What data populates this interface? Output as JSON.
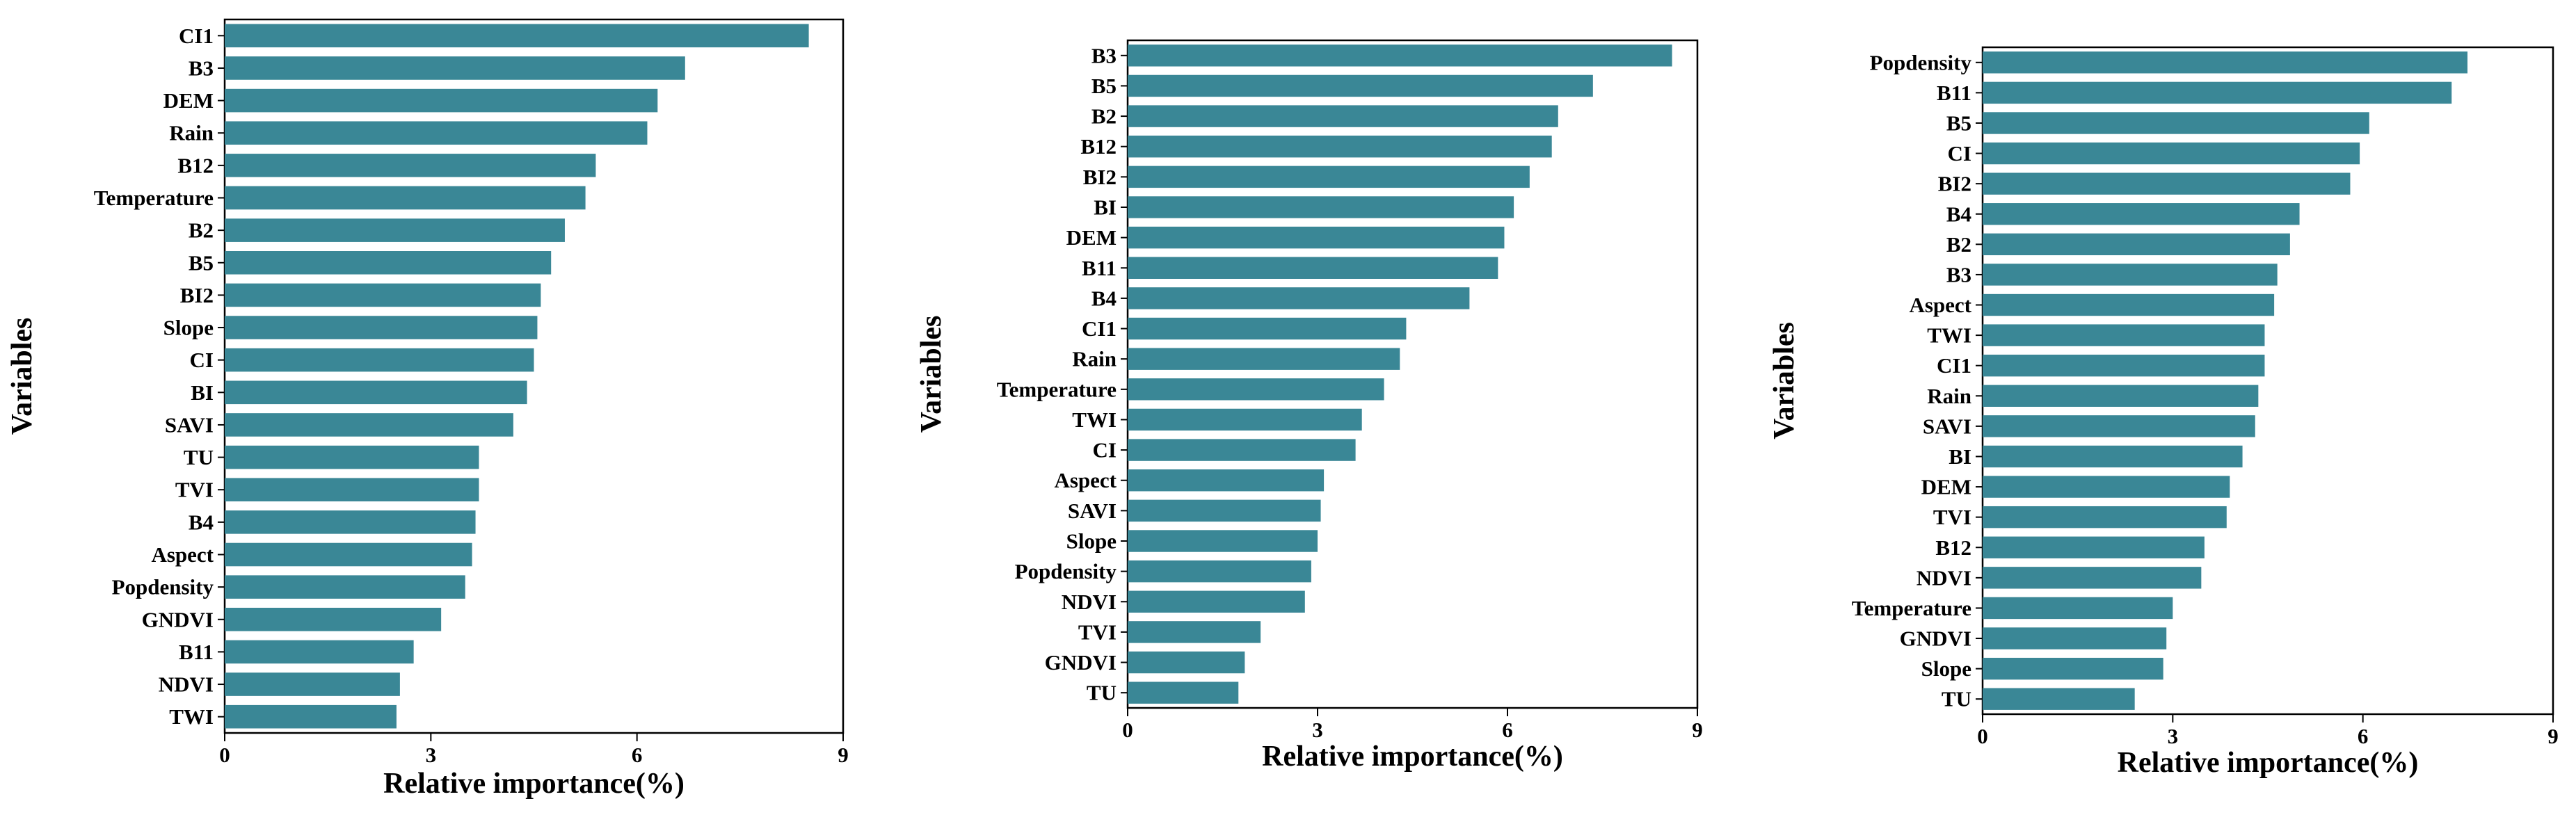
{
  "colors": {
    "bar": "#3a8796",
    "axis": "#000000"
  },
  "chart_data": [
    {
      "type": "bar",
      "orientation": "horizontal",
      "title": "",
      "xlabel": "Relative importance(%)",
      "ylabel": "Variables",
      "xlim": [
        0,
        9
      ],
      "xticks": [
        "0",
        "3",
        "6",
        "9"
      ],
      "categories": [
        "CI1",
        "B3",
        "DEM",
        "Rain",
        "B12",
        "Temperature",
        "B2",
        "B5",
        "BI2",
        "Slope",
        "CI",
        "BI",
        "SAVI",
        "TU",
        "TVI",
        "B4",
        "Aspect",
        "Popdensity",
        "GNDVI",
        "B11",
        "NDVI",
        "TWI"
      ],
      "values": [
        8.5,
        6.7,
        6.3,
        6.15,
        5.4,
        5.25,
        4.95,
        4.75,
        4.6,
        4.55,
        4.5,
        4.4,
        4.2,
        3.7,
        3.7,
        3.65,
        3.6,
        3.5,
        3.15,
        2.75,
        2.55,
        2.5
      ]
    },
    {
      "type": "bar",
      "orientation": "horizontal",
      "title": "",
      "xlabel": "Relative importance(%)",
      "ylabel": "Variables",
      "xlim": [
        0,
        9
      ],
      "xticks": [
        "0",
        "3",
        "6",
        "9"
      ],
      "categories": [
        "B3",
        "B5",
        "B2",
        "B12",
        "BI2",
        "BI",
        "DEM",
        "B11",
        "B4",
        "CI1",
        "Rain",
        "Temperature",
        "TWI",
        "CI",
        "Aspect",
        "SAVI",
        "Slope",
        "Popdensity",
        "NDVI",
        "TVI",
        "GNDVI",
        "TU"
      ],
      "values": [
        8.6,
        7.35,
        6.8,
        6.7,
        6.35,
        6.1,
        5.95,
        5.85,
        5.4,
        4.4,
        4.3,
        4.05,
        3.7,
        3.6,
        3.1,
        3.05,
        3.0,
        2.9,
        2.8,
        2.1,
        1.85,
        1.75
      ]
    },
    {
      "type": "bar",
      "orientation": "horizontal",
      "title": "",
      "xlabel": "Relative importance(%)",
      "ylabel": "Variables",
      "xlim": [
        0,
        9
      ],
      "xticks": [
        "0",
        "3",
        "6",
        "9"
      ],
      "categories": [
        "Popdensity",
        "B11",
        "B5",
        "CI",
        "BI2",
        "B4",
        "B2",
        "B3",
        "Aspect",
        "TWI",
        "CI1",
        "Rain",
        "SAVI",
        "BI",
        "DEM",
        "TVI",
        "B12",
        "NDVI",
        "Temperature",
        "GNDVI",
        "Slope",
        "TU"
      ],
      "values": [
        7.65,
        7.4,
        6.1,
        5.95,
        5.8,
        5.0,
        4.85,
        4.65,
        4.6,
        4.45,
        4.45,
        4.35,
        4.3,
        4.1,
        3.9,
        3.85,
        3.5,
        3.45,
        3.0,
        2.9,
        2.85,
        2.4
      ]
    }
  ]
}
